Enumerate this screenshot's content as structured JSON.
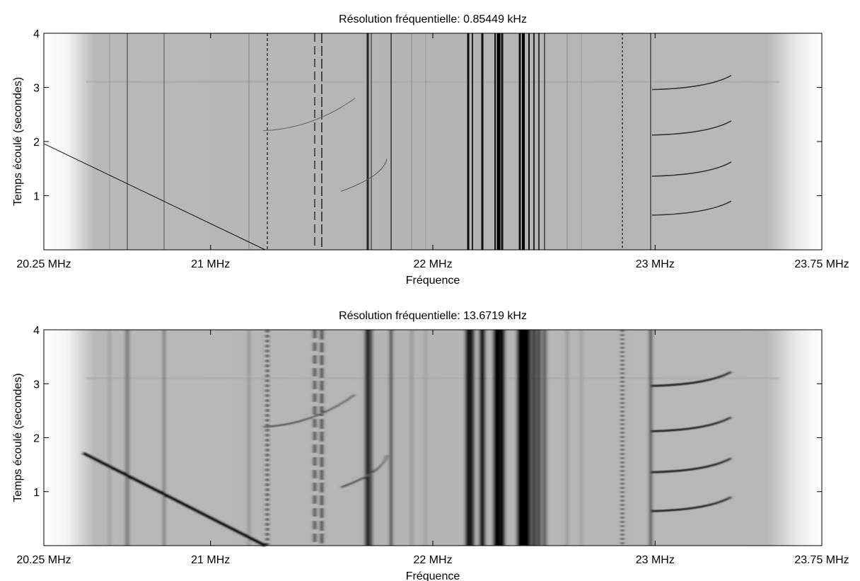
{
  "chart_data": [
    {
      "type": "spectrogram",
      "title": "Résolution fréquentielle: 0.85449 kHz",
      "xlabel": "Fréquence",
      "ylabel": "Temps écoulé (secondes)",
      "xlim": [
        20.25,
        23.75
      ],
      "xticks": [
        {
          "value": 20.25,
          "label": "20.25 MHz"
        },
        {
          "value": 21,
          "label": "21 MHz"
        },
        {
          "value": 22,
          "label": "22 MHz"
        },
        {
          "value": 23,
          "label": "23 MHz"
        },
        {
          "value": 23.75,
          "label": "23.75 MHz"
        }
      ],
      "ylim": [
        0,
        4
      ],
      "yticks": [
        1,
        2,
        3,
        4
      ]
    },
    {
      "type": "spectrogram",
      "title": "Résolution fréquentielle: 13.6719 kHz",
      "xlabel": "Fréquence",
      "ylabel": "Temps écoulé (secondes)",
      "xlim": [
        20.25,
        23.75
      ],
      "xticks": [
        {
          "value": 20.25,
          "label": "20.25 MHz"
        },
        {
          "value": 21,
          "label": "21 MHz"
        },
        {
          "value": 22,
          "label": "22 MHz"
        },
        {
          "value": 23,
          "label": "23 MHz"
        },
        {
          "value": 23.75,
          "label": "23.75 MHz"
        }
      ],
      "ylim": [
        0,
        4
      ],
      "yticks": [
        1,
        2,
        3,
        4
      ]
    }
  ]
}
